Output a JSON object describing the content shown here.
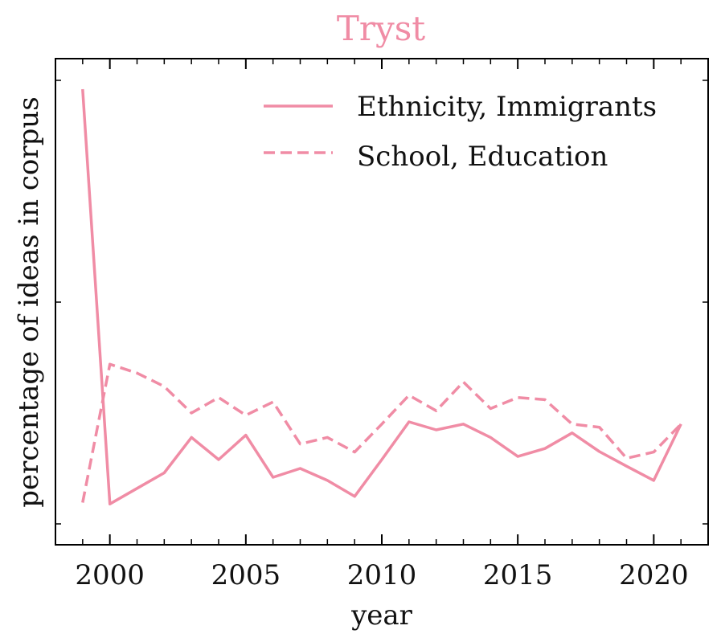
{
  "chart_data": {
    "type": "line",
    "title": "Tryst",
    "title_color": "#f08ca5",
    "xlabel": "year",
    "ylabel": "percentage of ideas in corpus",
    "xlim": [
      1998,
      2022
    ],
    "ylim": [
      0,
      1
    ],
    "x_ticks": [
      2000,
      2005,
      2010,
      2015,
      2020
    ],
    "x_tick_labels": [
      "2000",
      "2005",
      "2010",
      "2015",
      "2020"
    ],
    "y_tick_labels_visible": false,
    "grid": false,
    "legend_position": "top-right",
    "line_color": "#f08ca5",
    "x": [
      1999,
      2000,
      2001,
      2002,
      2003,
      2004,
      2005,
      2006,
      2007,
      2008,
      2009,
      2010,
      2011,
      2012,
      2013,
      2014,
      2015,
      2016,
      2017,
      2018,
      2019,
      2020,
      2021
    ],
    "series": [
      {
        "name": "Ethnicity, Immigrants",
        "style": "solid",
        "values": [
          0.98,
          0.045,
          0.08,
          0.115,
          0.195,
          0.145,
          0.2,
          0.105,
          0.125,
          0.098,
          0.062,
          0.145,
          0.23,
          0.212,
          0.225,
          0.195,
          0.152,
          0.17,
          0.205,
          0.163,
          0.13,
          0.098,
          0.225
        ]
      },
      {
        "name": "School, Education",
        "style": "dashed",
        "values": [
          0.048,
          0.36,
          0.34,
          0.31,
          0.25,
          0.285,
          0.245,
          0.275,
          0.18,
          0.195,
          0.162,
          0.225,
          0.29,
          0.255,
          0.32,
          0.26,
          0.285,
          0.28,
          0.225,
          0.218,
          0.148,
          0.162,
          0.225
        ]
      }
    ]
  }
}
